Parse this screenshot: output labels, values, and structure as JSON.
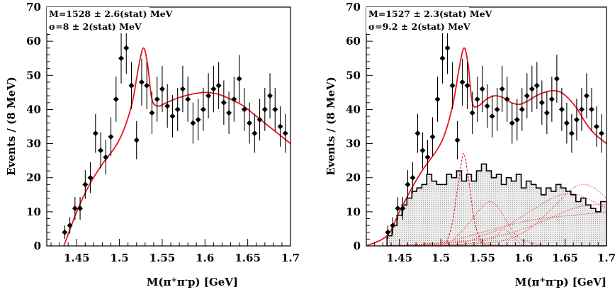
{
  "chart_data": [
    {
      "type": "scatter",
      "xlabel": "M(π+π-p) [GeV]",
      "xlabel_parts": {
        "pre": "M(π",
        "sup1": "+",
        "mid": "π",
        "sup2": "-",
        "post": "p) [GeV]"
      },
      "ylabel": "Events / (8 MeV)",
      "xlim": [
        1.415,
        1.7
      ],
      "ylim": [
        0,
        70
      ],
      "xticks": [
        1.45,
        1.5,
        1.55,
        1.6,
        1.65,
        1.7
      ],
      "xtick_labels": [
        "1.45",
        "1.5",
        "1.55",
        "1.6",
        "1.65",
        "1.7"
      ],
      "yticks": [
        0,
        10,
        20,
        30,
        40,
        50,
        60,
        70
      ],
      "ytick_labels": [
        "0",
        "10",
        "20",
        "30",
        "40",
        "50",
        "60",
        "70"
      ],
      "annotations": [
        "M=1528 ± 2.6(stat) MeV",
        "σ=8 ± 2(stat) MeV"
      ],
      "colors": {
        "fit": "#e8141e",
        "points": "#000000"
      },
      "points": {
        "x": [
          1.436,
          1.442,
          1.448,
          1.454,
          1.46,
          1.466,
          1.472,
          1.478,
          1.484,
          1.49,
          1.496,
          1.502,
          1.508,
          1.514,
          1.52,
          1.526,
          1.532,
          1.538,
          1.544,
          1.55,
          1.556,
          1.562,
          1.568,
          1.574,
          1.58,
          1.586,
          1.592,
          1.598,
          1.604,
          1.61,
          1.616,
          1.622,
          1.628,
          1.634,
          1.64,
          1.646,
          1.652,
          1.658,
          1.664,
          1.67,
          1.676,
          1.682,
          1.688,
          1.694
        ],
        "y": [
          4,
          6,
          11,
          11,
          18,
          20,
          33,
          28,
          26,
          32,
          43,
          55,
          58,
          47,
          31,
          48,
          47,
          39,
          43,
          46,
          41,
          38,
          40,
          46,
          43,
          36,
          37,
          40,
          44,
          46,
          47,
          42,
          39,
          43,
          49,
          40,
          36,
          33,
          37,
          40,
          44,
          40,
          35,
          33
        ],
        "yerr": [
          2,
          2.4,
          3.3,
          3.3,
          4.2,
          4.5,
          5.7,
          5.3,
          5.1,
          5.7,
          6.6,
          7.4,
          7.6,
          6.9,
          5.6,
          6.9,
          6.9,
          6.2,
          6.6,
          6.8,
          6.4,
          6.2,
          6.3,
          6.8,
          6.6,
          6,
          6.1,
          6.3,
          6.6,
          6.8,
          6.9,
          6.5,
          6.2,
          6.6,
          7,
          6.3,
          6,
          5.7,
          6.1,
          6.3,
          6.6,
          6.3,
          5.9,
          5.7
        ]
      },
      "fit_curve": {
        "x": [
          1.435,
          1.45,
          1.465,
          1.48,
          1.495,
          1.505,
          1.515,
          1.522,
          1.528,
          1.533,
          1.538,
          1.545,
          1.555,
          1.57,
          1.585,
          1.6,
          1.615,
          1.63,
          1.645,
          1.66,
          1.675,
          1.69,
          1.7
        ],
        "y": [
          0,
          10,
          18,
          24,
          29,
          34,
          42,
          52,
          58,
          53,
          43,
          41,
          42,
          43.5,
          44.5,
          45,
          44.5,
          43,
          41,
          38,
          35,
          32,
          30
        ]
      }
    },
    {
      "type": "scatter",
      "xlabel": "M(π+π-p) [GeV]",
      "xlabel_parts": {
        "pre": "M(π",
        "sup1": "+",
        "mid": "π",
        "sup2": "-",
        "post": "p) [GeV]"
      },
      "ylabel": "Events / (8 MeV)",
      "xlim": [
        1.41,
        1.7
      ],
      "ylim": [
        0,
        70
      ],
      "xticks": [
        1.45,
        1.5,
        1.55,
        1.6,
        1.65,
        1.7
      ],
      "xtick_labels": [
        "1.45",
        "1.5",
        "1.55",
        "1.6",
        "1.65",
        "1.7"
      ],
      "yticks": [
        0,
        10,
        20,
        30,
        40,
        50,
        60,
        70
      ],
      "ytick_labels": [
        "0",
        "10",
        "20",
        "30",
        "40",
        "50",
        "60",
        "70"
      ],
      "annotations": [
        "M=1527 ± 2.3(stat) MeV",
        "σ=9.2 ± 2(stat) MeV"
      ],
      "colors": {
        "fit": "#e8141e",
        "points": "#000000",
        "histogram_fill": "#cfcfcf"
      },
      "points": {
        "x": [
          1.436,
          1.442,
          1.448,
          1.454,
          1.46,
          1.466,
          1.472,
          1.478,
          1.484,
          1.49,
          1.496,
          1.502,
          1.508,
          1.514,
          1.52,
          1.526,
          1.532,
          1.538,
          1.544,
          1.55,
          1.556,
          1.562,
          1.568,
          1.574,
          1.58,
          1.586,
          1.592,
          1.598,
          1.604,
          1.61,
          1.616,
          1.622,
          1.628,
          1.634,
          1.64,
          1.646,
          1.652,
          1.658,
          1.664,
          1.67,
          1.676,
          1.682,
          1.688,
          1.694
        ],
        "y": [
          4,
          6,
          11,
          11,
          18,
          20,
          33,
          28,
          26,
          32,
          43,
          55,
          58,
          47,
          31,
          48,
          47,
          39,
          43,
          46,
          41,
          38,
          40,
          46,
          43,
          36,
          37,
          40,
          44,
          46,
          47,
          42,
          39,
          43,
          49,
          40,
          36,
          33,
          37,
          40,
          44,
          40,
          35,
          33
        ],
        "yerr": [
          2,
          2.4,
          3.3,
          3.3,
          4.2,
          4.5,
          5.7,
          5.3,
          5.1,
          5.7,
          6.6,
          7.4,
          7.6,
          6.9,
          5.6,
          6.9,
          6.9,
          6.2,
          6.6,
          6.8,
          6.4,
          6.2,
          6.3,
          6.8,
          6.6,
          6,
          6.1,
          6.3,
          6.6,
          6.8,
          6.9,
          6.5,
          6.2,
          6.6,
          7,
          6.3,
          6,
          5.7,
          6.1,
          6.3,
          6.6,
          6.3,
          5.9,
          5.7
        ]
      },
      "fit_curve": {
        "x": [
          1.41,
          1.435,
          1.45,
          1.465,
          1.48,
          1.495,
          1.505,
          1.515,
          1.522,
          1.528,
          1.533,
          1.538,
          1.545,
          1.555,
          1.565,
          1.575,
          1.585,
          1.595,
          1.605,
          1.615,
          1.625,
          1.635,
          1.645,
          1.655,
          1.665,
          1.675,
          1.685,
          1.7
        ],
        "y": [
          0,
          3,
          10,
          17,
          23,
          28,
          33,
          42,
          52,
          58,
          53,
          42,
          41,
          43,
          44,
          43.5,
          42,
          41.5,
          42.5,
          44,
          45,
          45.5,
          45,
          43,
          40,
          36,
          33,
          30
        ]
      },
      "histogram": {
        "bin_edges": [
          1.435,
          1.441,
          1.447,
          1.453,
          1.459,
          1.465,
          1.471,
          1.477,
          1.483,
          1.489,
          1.495,
          1.501,
          1.507,
          1.513,
          1.519,
          1.525,
          1.531,
          1.537,
          1.543,
          1.549,
          1.555,
          1.561,
          1.567,
          1.573,
          1.579,
          1.585,
          1.591,
          1.597,
          1.603,
          1.609,
          1.615,
          1.621,
          1.627,
          1.633,
          1.639,
          1.645,
          1.651,
          1.657,
          1.663,
          1.669,
          1.675,
          1.681,
          1.687,
          1.693,
          1.7
        ],
        "values": [
          3,
          6,
          9,
          12,
          14,
          16,
          17,
          18,
          21,
          19,
          18,
          18,
          21,
          20,
          22,
          19,
          21,
          19,
          22,
          24,
          22,
          20,
          21,
          18,
          20,
          19,
          21,
          17,
          19,
          18,
          17,
          15,
          17,
          16,
          18,
          17,
          16,
          15,
          13,
          14,
          12,
          11,
          10,
          13
        ]
      },
      "components": [
        {
          "style": "dashed",
          "x": [
            1.41,
            1.5,
            1.508,
            1.514,
            1.519,
            1.524,
            1.527,
            1.53,
            1.535,
            1.54,
            1.546,
            1.554,
            1.6
          ],
          "y": [
            0,
            0,
            2,
            7,
            15,
            23,
            27,
            25,
            17,
            8,
            3,
            0.5,
            0
          ]
        },
        {
          "style": "dotted",
          "x": [
            1.42,
            1.5,
            1.52,
            1.535,
            1.55,
            1.56,
            1.57,
            1.585,
            1.6,
            1.63
          ],
          "y": [
            0,
            0.5,
            3,
            7,
            11.5,
            13,
            11,
            5,
            1.5,
            0
          ]
        },
        {
          "style": "dotted",
          "x": [
            1.42,
            1.52,
            1.55,
            1.58,
            1.61,
            1.635,
            1.655,
            1.675,
            1.7
          ],
          "y": [
            0,
            1,
            3,
            6,
            10.5,
            14,
            15.5,
            14,
            11
          ]
        },
        {
          "style": "dotted",
          "x": [
            1.46,
            1.56,
            1.6,
            1.63,
            1.655,
            1.67,
            1.685,
            1.7
          ],
          "y": [
            0,
            1,
            4,
            10,
            16,
            18,
            17,
            14
          ]
        },
        {
          "style": "dotted",
          "x": [
            1.44,
            1.55,
            1.6,
            1.63,
            1.66,
            1.68,
            1.7
          ],
          "y": [
            0,
            2,
            5,
            8,
            11,
            12,
            12
          ]
        },
        {
          "style": "dotted",
          "x": [
            1.43,
            1.5,
            1.55,
            1.58,
            1.62,
            1.66,
            1.7
          ],
          "y": [
            0,
            1,
            4,
            6,
            8,
            9,
            10
          ]
        },
        {
          "style": "dotted",
          "x": [
            1.41,
            1.5,
            1.56,
            1.575,
            1.59,
            1.61,
            1.7
          ],
          "y": [
            0,
            0,
            2,
            5,
            2,
            0,
            0
          ]
        }
      ]
    }
  ]
}
